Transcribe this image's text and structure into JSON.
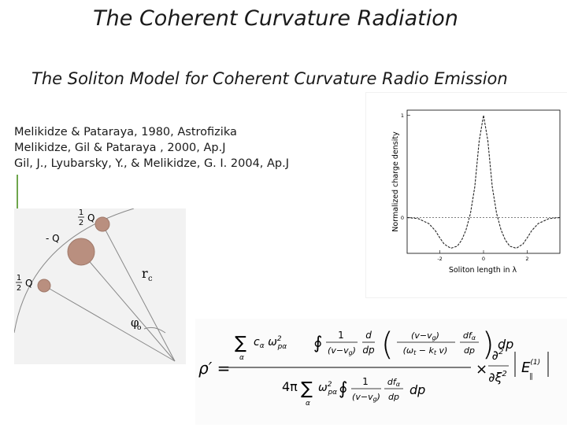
{
  "slide": {
    "title": "The Coherent Curvature Radiation",
    "subtitle": "The Soliton Model for Coherent  Curvature Radio Emission",
    "references": [
      "Melikidze & Pataraya, 1980, Astrofizika",
      "Melikidze, Gil & Pataraya , 2000, Ap.J",
      "Gil, J., Lyubarsky, Y., & Melikidze, G. I. 2004, Ap.J"
    ]
  },
  "charge_diagram": {
    "charge_top": "Q",
    "charge_center": "- Q",
    "charge_left": "Q",
    "half_num": "1",
    "half_den": "2",
    "radius_label": "r",
    "radius_sub": "c",
    "angle_label": "φ",
    "angle_sub": "o"
  },
  "chart_data": {
    "type": "line",
    "title": "",
    "xlabel": "Soliton length in λ",
    "ylabel": "Normalized charge density",
    "x_ticks": [
      "-2",
      "0",
      "2"
    ],
    "y_ticks": [
      "1",
      "0"
    ],
    "xlim": [
      -3.5,
      3.5
    ],
    "ylim": [
      -0.35,
      1.05
    ],
    "series": [
      {
        "x": [
          -3.5,
          -3.0,
          -2.5,
          -2.2,
          -2.0,
          -1.8,
          -1.5,
          -1.2,
          -1.0,
          -0.8,
          -0.6,
          -0.4,
          -0.2,
          0.0,
          0.2,
          0.4,
          0.6,
          0.8,
          1.0,
          1.2,
          1.5,
          1.8,
          2.0,
          2.2,
          2.5,
          3.0,
          3.5
        ],
        "y": [
          0.0,
          -0.01,
          -0.06,
          -0.13,
          -0.2,
          -0.26,
          -0.3,
          -0.28,
          -0.22,
          -0.12,
          0.04,
          0.3,
          0.75,
          1.0,
          0.75,
          0.3,
          0.04,
          -0.12,
          -0.22,
          -0.28,
          -0.3,
          -0.26,
          -0.2,
          -0.13,
          -0.06,
          -0.01,
          0.0
        ]
      }
    ]
  },
  "formula": {
    "lhs": "ρ′ =",
    "numerator": "∑ cα ω²pα ∮ (1/(v−vg)) (d/dp) ( ((v−vg)/(ωt − kt v)) (dfα/dp) ) dp",
    "denominator": "4π ∑ ω²pα ∮ (1/(v−vg)) (dfα/dp) dp",
    "times": "×",
    "rhs": "∂²/∂ξ² | E(1)∥ |²"
  }
}
